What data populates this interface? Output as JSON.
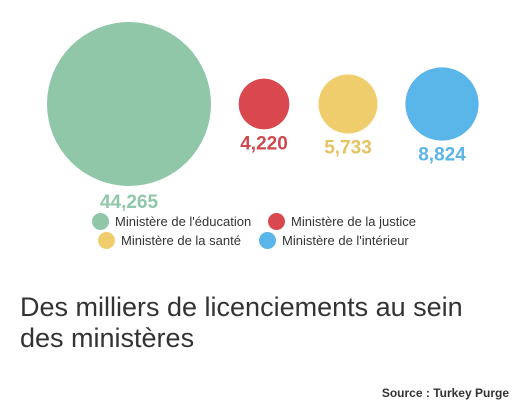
{
  "chart_data": {
    "type": "bubble",
    "title": "Des milliers de licenciements au sein des ministères",
    "source": "Source : Turkey Purge",
    "series": [
      {
        "name": "Ministère de l'éducation",
        "value": 44265,
        "label": "44,265",
        "color": "#8fc7a8",
        "label_color": "#8fc7a8"
      },
      {
        "name": "Ministère de la justice",
        "value": 4220,
        "label": "4,220",
        "color": "#d9474f",
        "label_color": "#cc4a50"
      },
      {
        "name": "Ministère de la santé",
        "value": 5733,
        "label": "5,733",
        "color": "#f0cd6c",
        "label_color": "#e6c260"
      },
      {
        "name": "Ministère de l'intérieur",
        "value": 8824,
        "label": "8,824",
        "color": "#5ab5e8",
        "label_color": "#5ab5e8"
      }
    ]
  }
}
